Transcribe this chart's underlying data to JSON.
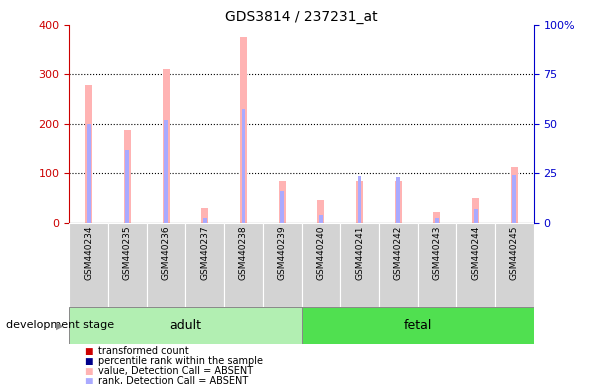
{
  "title": "GDS3814 / 237231_at",
  "categories": [
    "GSM440234",
    "GSM440235",
    "GSM440236",
    "GSM440237",
    "GSM440238",
    "GSM440239",
    "GSM440240",
    "GSM440241",
    "GSM440242",
    "GSM440243",
    "GSM440244",
    "GSM440245"
  ],
  "pink_values": [
    278,
    187,
    310,
    30,
    375,
    85,
    45,
    85,
    85,
    22,
    50,
    113
  ],
  "blue_ranks": [
    200,
    148,
    208,
    10,
    230,
    65,
    15,
    95,
    92,
    10,
    28,
    97
  ],
  "group_adult_count": 6,
  "group_fetal_count": 6,
  "ylim_left": [
    0,
    400
  ],
  "ylim_right": [
    0,
    100
  ],
  "yticks_left": [
    0,
    100,
    200,
    300,
    400
  ],
  "yticks_right": [
    0,
    25,
    50,
    75,
    100
  ],
  "ylabel_left_color": "#cc0000",
  "ylabel_right_color": "#0000cc",
  "adult_color": "#b2efb2",
  "fetal_color": "#50e050",
  "bar_pink": "#ffb3b3",
  "bar_blue": "#aaaaff",
  "bar_red": "#cc0000",
  "bar_darkblue": "#00008b",
  "legend_items": [
    {
      "label": "transformed count",
      "color": "#cc0000"
    },
    {
      "label": "percentile rank within the sample",
      "color": "#00008b"
    },
    {
      "label": "value, Detection Call = ABSENT",
      "color": "#ffb3b3"
    },
    {
      "label": "rank, Detection Call = ABSENT",
      "color": "#aaaaff"
    }
  ],
  "development_stage_label": "development stage",
  "adult_label": "adult",
  "fetal_label": "fetal",
  "tick_area_color": "#d3d3d3"
}
